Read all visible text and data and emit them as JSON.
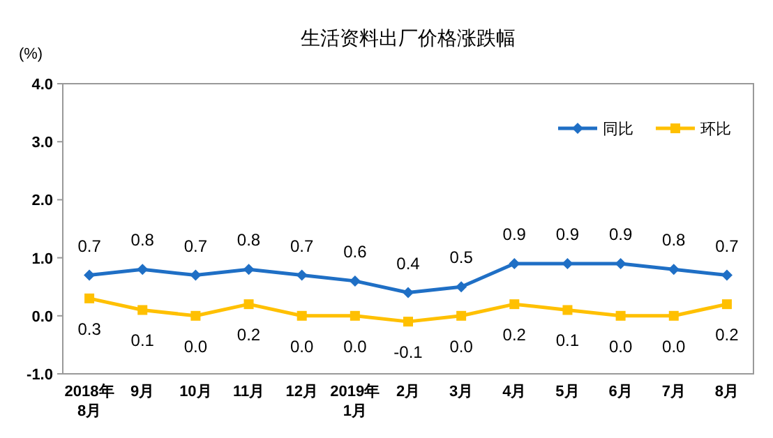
{
  "chart_data": {
    "type": "line",
    "title": "生活资料出厂价格涨跌幅",
    "ylabel": "(%)",
    "categories": [
      "2018年\n8月",
      "9月",
      "10月",
      "11月",
      "12月",
      "2019年\n1月",
      "2月",
      "3月",
      "4月",
      "5月",
      "6月",
      "7月",
      "8月"
    ],
    "series": [
      {
        "name": "同比",
        "color": "#1f6fc5",
        "marker": "diamond",
        "values": [
          0.7,
          0.8,
          0.7,
          0.8,
          0.7,
          0.6,
          0.4,
          0.5,
          0.9,
          0.9,
          0.9,
          0.8,
          0.7
        ],
        "value_labels": [
          "0.7",
          "0.8",
          "0.7",
          "0.8",
          "0.7",
          "0.6",
          "0.4",
          "0.5",
          "0.9",
          "0.9",
          "0.9",
          "0.8",
          "0.7"
        ]
      },
      {
        "name": "环比",
        "color": "#ffc000",
        "marker": "square",
        "values": [
          0.3,
          0.1,
          0.0,
          0.2,
          0.0,
          0.0,
          -0.1,
          0.0,
          0.2,
          0.1,
          0.0,
          0.0,
          0.2
        ],
        "value_labels": [
          "0.3",
          "0.1",
          "0.0",
          "0.2",
          "0.0",
          "0.0",
          "-0.1",
          "0.0",
          "0.2",
          "0.1",
          "0.0",
          "0.0",
          "0.2"
        ]
      }
    ],
    "ylim": [
      -1,
      4
    ],
    "yticks": [
      {
        "value": -1,
        "label": "-1.0"
      },
      {
        "value": 0,
        "label": "0.0"
      },
      {
        "value": 1,
        "label": "1.0"
      },
      {
        "value": 2,
        "label": "2.0"
      },
      {
        "value": 3,
        "label": "3.0"
      },
      {
        "value": 4,
        "label": "4.0"
      }
    ],
    "legend": "top right"
  }
}
